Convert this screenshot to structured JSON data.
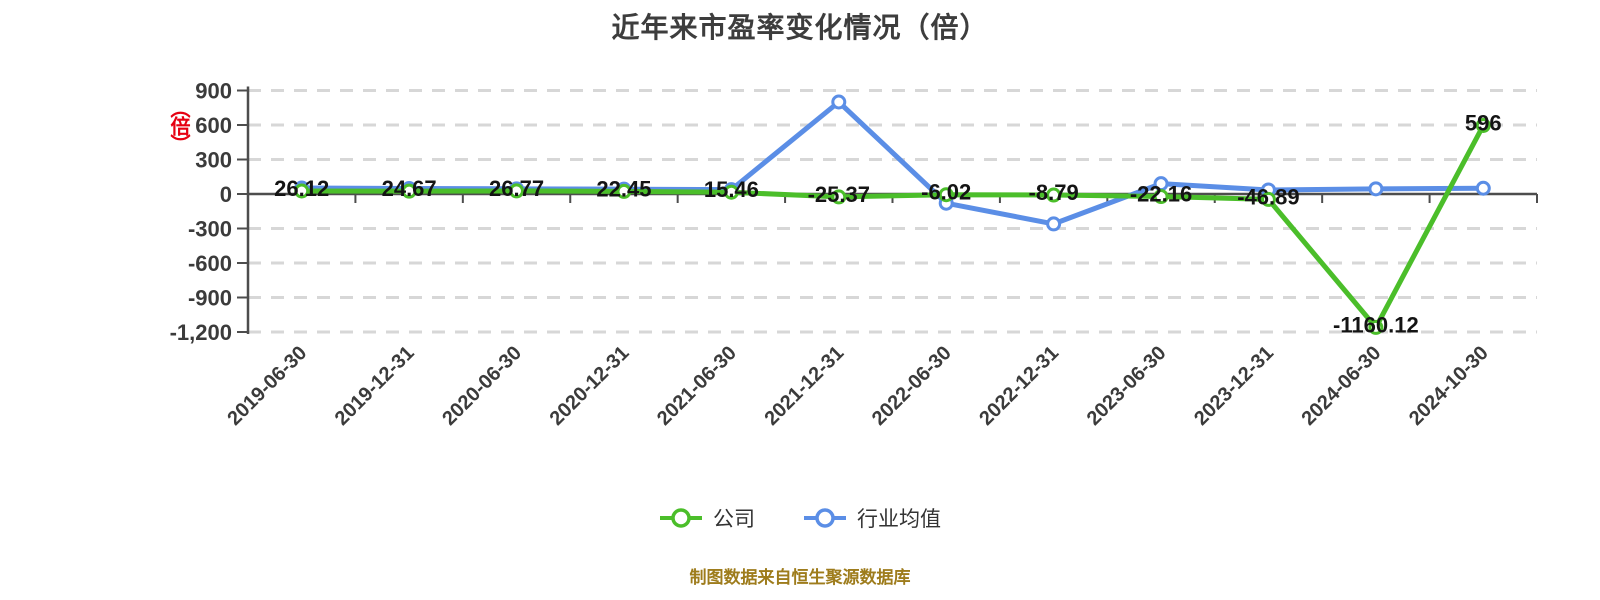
{
  "header": {
    "title": "近年来市盈率变化情况（倍）"
  },
  "y_axis": {
    "unit_label": "（倍）"
  },
  "legend": {
    "items": [
      {
        "label": "公司",
        "color": "#4bbe2a"
      },
      {
        "label": "行业均值",
        "color": "#5b8ee6"
      }
    ]
  },
  "footer": {
    "note": "制图数据来自恒生聚源数据库"
  },
  "colors": {
    "company": "#4bbe2a",
    "industry": "#5b8ee6",
    "unit_label": "#e60012",
    "footer_text": "#9e7c1c",
    "axis": "#4d4d4d",
    "gridline": "#d7d7d7",
    "tick_label": "#3b3b3b",
    "data_label": "#141414",
    "marker_fill": "#ffffff"
  },
  "chart_data": {
    "type": "line",
    "title": "近年来市盈率变化情况（倍）",
    "categories": [
      "2019-06-30",
      "2019-12-31",
      "2020-06-30",
      "2020-12-31",
      "2021-06-30",
      "2021-12-31",
      "2022-06-30",
      "2022-12-31",
      "2023-06-30",
      "2023-12-31",
      "2024-06-30",
      "2024-10-30"
    ],
    "series": [
      {
        "name": "公司",
        "color": "#4bbe2a",
        "values": [
          26.12,
          24.67,
          26.77,
          22.45,
          15.46,
          -25.37,
          -6.02,
          -8.79,
          -22.16,
          -46.89,
          -1160.12,
          596
        ],
        "data_labels": [
          "26.12",
          "24.67",
          "26.77",
          "22.45",
          "15.46",
          "-25.37",
          "-6.02",
          "-8.79",
          "-22.16",
          "-46.89",
          "-1160.12",
          "596"
        ],
        "show_labels": true
      },
      {
        "name": "行业均值",
        "color": "#5b8ee6",
        "values": [
          52,
          48,
          45,
          42,
          38,
          800,
          -80,
          -260,
          90,
          35,
          45,
          50
        ],
        "show_labels": false
      }
    ],
    "ylim": [
      -1200,
      900
    ],
    "y_ticks": [
      900,
      600,
      300,
      0,
      -300,
      -600,
      -900,
      -1200
    ],
    "y_tick_labels": [
      "900",
      "600",
      "300",
      "0",
      "-300",
      "-600",
      "-900",
      "-1,200"
    ],
    "x_label_rotation": 45,
    "grid": "horizontal-dashed",
    "legend_position": "bottom"
  }
}
